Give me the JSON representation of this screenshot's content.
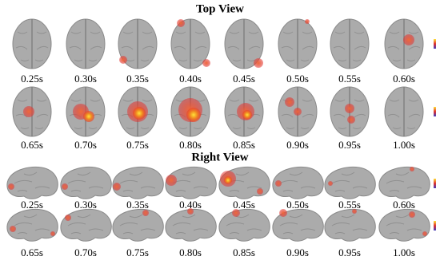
{
  "sections": [
    {
      "title": "Top View",
      "rows": [
        [
          "0.25s",
          "0.30s",
          "0.35s",
          "0.40s",
          "0.45s",
          "0.50s",
          "0.55s",
          "0.60s"
        ],
        [
          "0.65s",
          "0.70s",
          "0.75s",
          "0.80s",
          "0.85s",
          "0.90s",
          "0.95s",
          "1.00s"
        ]
      ]
    },
    {
      "title": "Right View",
      "rows": [
        [
          "0.25s",
          "0.30s",
          "0.35s",
          "0.40s",
          "0.45s",
          "0.50s",
          "0.55s",
          "0.60s"
        ],
        [
          "0.65s",
          "0.70s",
          "0.75s",
          "0.80s",
          "0.85s",
          "0.90s",
          "0.95s",
          "1.00s"
        ]
      ]
    }
  ]
}
